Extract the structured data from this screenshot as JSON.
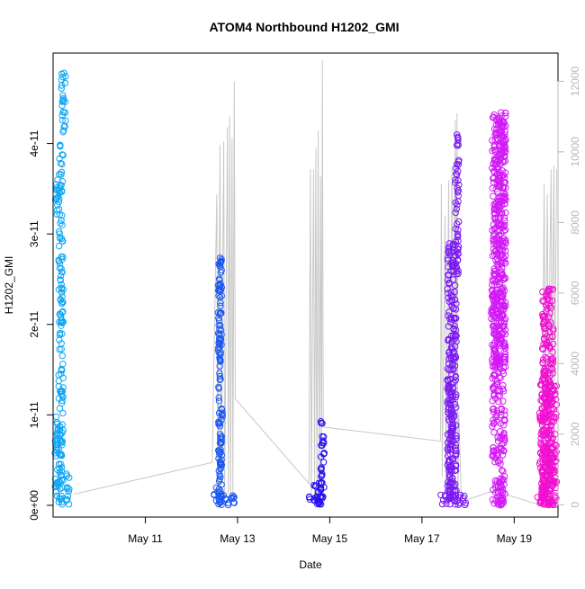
{
  "chart_data": {
    "type": "scatter",
    "title": "ATOM4 Northbound H1202_GMI",
    "xlabel": "Date",
    "ylabel": "H1202_GMI",
    "x_axis": {
      "unit": "days (May)",
      "range": [
        9.0,
        19.95
      ],
      "ticks": [
        {
          "value": 11,
          "label": "May 11"
        },
        {
          "value": 13,
          "label": "May 13"
        },
        {
          "value": 15,
          "label": "May 15"
        },
        {
          "value": 17,
          "label": "May 17"
        },
        {
          "value": 19,
          "label": "May 19"
        }
      ]
    },
    "y_axis_left": {
      "range": [
        -1.3e-12,
        5e-11
      ],
      "ticks": [
        {
          "value": 0,
          "label": "0e+00"
        },
        {
          "value": 1e-11,
          "label": "1e-11"
        },
        {
          "value": 2e-11,
          "label": "2e-11"
        },
        {
          "value": 3e-11,
          "label": "3e-11"
        },
        {
          "value": 4e-11,
          "label": "4e-11"
        }
      ]
    },
    "y_axis_right": {
      "range": [
        -350,
        12800
      ],
      "ticks": [
        {
          "value": 0,
          "label": "0"
        },
        {
          "value": 2000,
          "label": "2000"
        },
        {
          "value": 4000,
          "label": "4000"
        },
        {
          "value": 6000,
          "label": "6000"
        },
        {
          "value": 8000,
          "label": "8000"
        },
        {
          "value": 10000,
          "label": "10000"
        },
        {
          "value": 12000,
          "label": "12000"
        }
      ]
    },
    "grey_line": {
      "color": "#c8c8c8",
      "points": [
        [
          9.45,
          300
        ],
        [
          12.45,
          1200
        ],
        [
          12.55,
          8800
        ],
        [
          12.57,
          200
        ],
        [
          12.62,
          10200
        ],
        [
          12.64,
          300
        ],
        [
          12.7,
          10300
        ],
        [
          12.72,
          200
        ],
        [
          12.78,
          10700
        ],
        [
          12.8,
          300
        ],
        [
          12.83,
          11000
        ],
        [
          12.85,
          200
        ],
        [
          12.88,
          10400
        ],
        [
          12.9,
          250
        ],
        [
          12.93,
          12000
        ],
        [
          12.95,
          3000
        ],
        [
          14.55,
          600
        ],
        [
          14.58,
          9500
        ],
        [
          14.6,
          300
        ],
        [
          14.65,
          9500
        ],
        [
          14.67,
          200
        ],
        [
          14.7,
          10100
        ],
        [
          14.72,
          300
        ],
        [
          14.75,
          10600
        ],
        [
          14.77,
          200
        ],
        [
          14.8,
          9300
        ],
        [
          14.82,
          500
        ],
        [
          14.84,
          12600
        ],
        [
          14.86,
          2200
        ],
        [
          17.4,
          1800
        ],
        [
          17.42,
          9100
        ],
        [
          17.44,
          800
        ],
        [
          17.5,
          8200
        ],
        [
          17.52,
          600
        ],
        [
          17.58,
          9200
        ],
        [
          17.6,
          700
        ],
        [
          17.65,
          9600
        ],
        [
          17.67,
          500
        ],
        [
          17.72,
          10900
        ],
        [
          17.74,
          1100
        ],
        [
          17.76,
          11100
        ],
        [
          17.78,
          300
        ],
        [
          17.8,
          2600
        ],
        [
          17.85,
          300
        ],
        [
          17.9,
          200
        ],
        [
          18.0,
          150
        ],
        [
          18.55,
          400
        ],
        [
          19.55,
          0
        ],
        [
          19.62,
          3200
        ],
        [
          19.65,
          9100
        ],
        [
          19.67,
          3000
        ],
        [
          19.72,
          8800
        ],
        [
          19.74,
          3200
        ],
        [
          19.8,
          9500
        ],
        [
          19.82,
          3300
        ],
        [
          19.86,
          9600
        ],
        [
          19.88,
          3500
        ],
        [
          19.92,
          9500
        ]
      ]
    },
    "series": [
      {
        "color": "#0ea5f3",
        "segments": [
          {
            "x": [
              9.03,
              9.12
            ],
            "y": [
              1e-12,
              1e-11
            ]
          },
          {
            "x": [
              9.05,
              9.12
            ],
            "y": [
              3.2e-11,
              3.6e-11
            ]
          },
          {
            "x": [
              9.12,
              9.22
            ],
            "y": [
              0,
              4e-11
            ]
          },
          {
            "x": [
              9.18,
              9.28
            ],
            "y": [
              4.1e-11,
              4.8e-11
            ]
          },
          {
            "x": [
              9.28,
              9.35
            ],
            "y": [
              0,
              3.5e-12
            ]
          }
        ]
      },
      {
        "color": "#1a56f0",
        "segments": [
          {
            "x": [
              12.45,
              12.65
            ],
            "y": [
              0,
              2e-12
            ]
          },
          {
            "x": [
              12.58,
              12.66
            ],
            "y": [
              0,
              2.75e-11
            ]
          },
          {
            "x": [
              12.62,
              12.95
            ],
            "y": [
              0,
              1.2e-12
            ]
          },
          {
            "x": [
              12.58,
              12.64
            ],
            "y": [
              1.5e-11,
              2.7e-11
            ]
          },
          {
            "x": [
              12.62,
              12.68
            ],
            "y": [
              4e-12,
              1.1e-11
            ]
          }
        ]
      },
      {
        "color": "#2a10ee",
        "segments": [
          {
            "x": [
              14.55,
              14.9
            ],
            "y": [
              0,
              1e-12
            ]
          },
          {
            "x": [
              14.8,
              14.88
            ],
            "y": [
              0,
              9.5e-12
            ]
          },
          {
            "x": [
              14.65,
              14.82
            ],
            "y": [
              0,
              2.5e-12
            ]
          }
        ]
      },
      {
        "color": "#7a18f2",
        "segments": [
          {
            "x": [
              17.4,
              17.95
            ],
            "y": [
              0,
              1.2e-12
            ]
          },
          {
            "x": [
              17.55,
              17.75
            ],
            "y": [
              0,
              2.9e-11
            ]
          },
          {
            "x": [
              17.72,
              17.8
            ],
            "y": [
              2.4e-11,
              4.1e-11
            ]
          },
          {
            "x": [
              17.58,
              17.68
            ],
            "y": [
              0,
              1.3e-11
            ]
          }
        ]
      },
      {
        "color": "#d21af5",
        "segments": [
          {
            "x": [
              18.5,
              18.55
            ],
            "y": [
              2e-11,
              2.5e-11
            ]
          },
          {
            "x": [
              18.52,
              18.8
            ],
            "y": [
              0,
              4.3e-11
            ]
          },
          {
            "x": [
              18.55,
              18.82
            ],
            "y": [
              1.5e-11,
              4.35e-11
            ]
          },
          {
            "x": [
              18.55,
              18.8
            ],
            "y": [
              0,
              1.5e-12
            ]
          }
        ]
      },
      {
        "color": "#f010d0",
        "segments": [
          {
            "x": [
              19.5,
              19.92
            ],
            "y": [
              0,
              1e-12
            ]
          },
          {
            "x": [
              19.6,
              19.85
            ],
            "y": [
              0,
              2.4e-11
            ]
          },
          {
            "x": [
              19.55,
              19.92
            ],
            "y": [
              0,
              1.4e-11
            ]
          }
        ]
      }
    ]
  }
}
